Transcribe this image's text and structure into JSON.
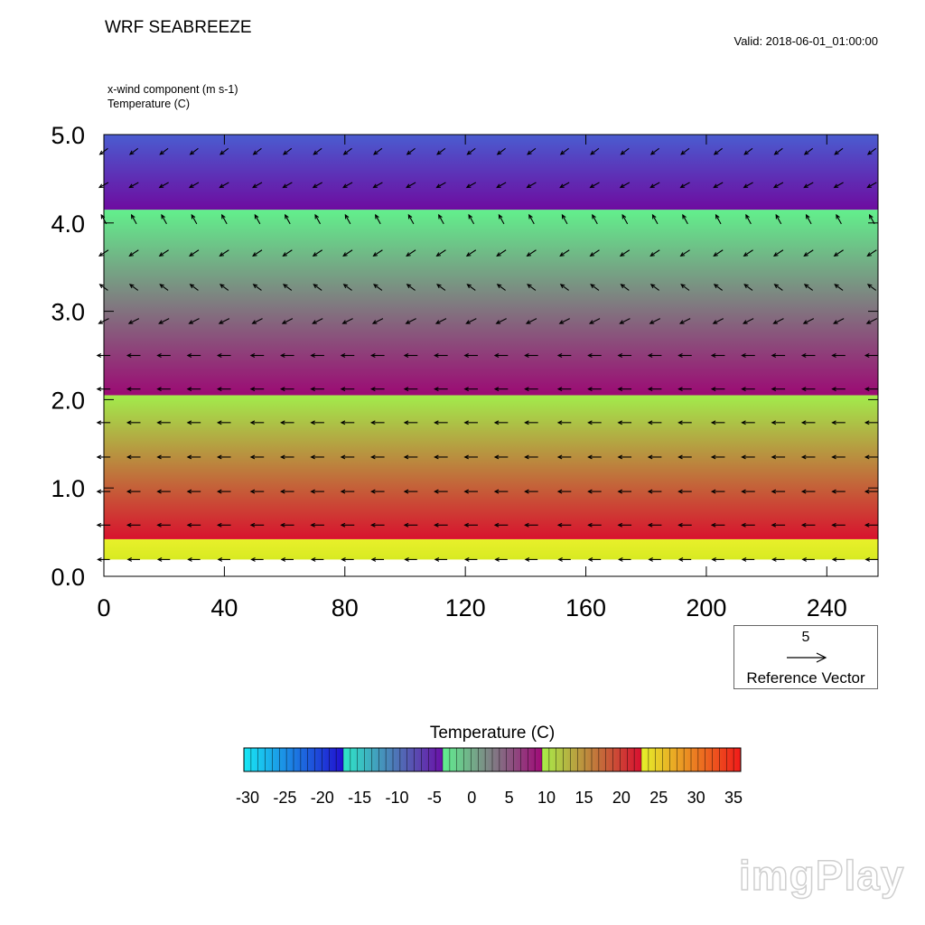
{
  "header": {
    "title": "WRF SEABREEZE",
    "valid": "Valid: 2018-06-01_01:00:00",
    "field_labels": [
      "x-wind component   (m s-1)",
      "Temperature   (C)"
    ]
  },
  "reference_vector": {
    "magnitude": "5",
    "label": "Reference Vector"
  },
  "watermark": "imgPlay",
  "chart_data": {
    "type": "heatmap",
    "title": "WRF SEABREEZE",
    "fields": [
      "x-wind component (m s-1)",
      "Temperature (C)"
    ],
    "x_ticks": [
      0,
      40,
      80,
      120,
      160,
      200,
      240
    ],
    "x_tick_labels": [
      "0",
      "40",
      "80",
      "120",
      "160",
      "200",
      "240"
    ],
    "xlim": [
      0,
      257
    ],
    "y_ticks": [
      0.0,
      1.0,
      2.0,
      3.0,
      4.0,
      5.0
    ],
    "y_tick_labels": [
      "0.0",
      "1.0",
      "2.0",
      "3.0",
      "4.0",
      "5.0"
    ],
    "ylim": [
      0.0,
      5.0
    ],
    "temperature_layers": [
      {
        "y0": 0.0,
        "y1": 0.19,
        "top": "#ffffff",
        "bottom": "#ffffff"
      },
      {
        "y0": 0.19,
        "y1": 0.42,
        "top": "#e8f02a",
        "bottom": "#d8ea22"
      },
      {
        "y0": 0.42,
        "y1": 2.05,
        "top": "#a2ec4c",
        "bottom": "#d8122e"
      },
      {
        "y0": 2.05,
        "y1": 4.15,
        "top": "#62f08c",
        "bottom": "#9c0a74"
      },
      {
        "y0": 4.15,
        "y1": 5.0,
        "top": "#4a5cd0",
        "bottom": "#6e0ca0"
      }
    ],
    "wind_rows": [
      {
        "y": 0.19,
        "u": -1.2,
        "v": 0.0
      },
      {
        "y": 0.58,
        "u": -1.3,
        "v": 0.0
      },
      {
        "y": 0.96,
        "u": -1.3,
        "v": 0.0
      },
      {
        "y": 1.35,
        "u": -1.3,
        "v": 0.0
      },
      {
        "y": 1.74,
        "u": -1.3,
        "v": 0.0
      },
      {
        "y": 2.12,
        "u": -1.3,
        "v": 0.0
      },
      {
        "y": 2.5,
        "u": -1.3,
        "v": 0.0
      },
      {
        "y": 2.89,
        "u": -1.0,
        "v": -0.5
      },
      {
        "y": 3.27,
        "u": -0.8,
        "v": 0.6
      },
      {
        "y": 3.66,
        "u": -0.9,
        "v": -0.6
      },
      {
        "y": 4.04,
        "u": -0.5,
        "v": 0.9
      },
      {
        "y": 4.43,
        "u": -0.9,
        "v": -0.5
      },
      {
        "y": 4.81,
        "u": -0.8,
        "v": -0.6
      }
    ],
    "wind_x": [
      0,
      10,
      20,
      30,
      40,
      51,
      61,
      71,
      81,
      91,
      102,
      112,
      122,
      132,
      142,
      153,
      163,
      173,
      183,
      193,
      204,
      214,
      224,
      234,
      244,
      255
    ],
    "colorbar": {
      "title": "Temperature  (C)",
      "labels": [
        "-30",
        "-25",
        "-20",
        "-15",
        "-10",
        "-5",
        "0",
        "5",
        "10",
        "15",
        "20",
        "25",
        "30",
        "35"
      ],
      "segments": [
        {
          "from": "#18e8f4",
          "to": "#2010d0"
        },
        {
          "from": "#2ee8c8",
          "to": "#6a10a8"
        },
        {
          "from": "#60f090",
          "to": "#a00a78"
        },
        {
          "from": "#a8ee48",
          "to": "#d81030"
        },
        {
          "from": "#e6f02a",
          "to": "#f01a1a"
        }
      ]
    }
  }
}
